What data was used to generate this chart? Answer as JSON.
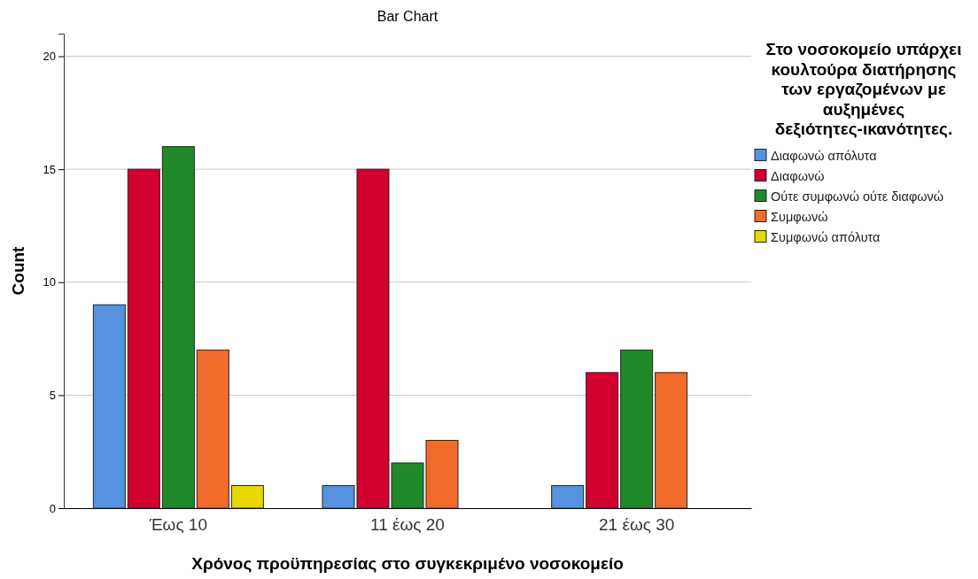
{
  "chart_data": {
    "type": "bar",
    "title": "Bar Chart",
    "xlabel": "Χρόνος προϋπηρεσίας στο συγκεκριμένο νοσοκομείο",
    "ylabel": "Count",
    "legend_title": "Στο νοσοκομείο υπάρχει κουλτούρα διατήρησης των εργαζομένων με αυξημένες δεξιότητες-ικανότητες.",
    "categories": [
      "Έως 10",
      "11 έως 20",
      "21 έως 30"
    ],
    "series": [
      {
        "name": "Διαφωνώ απόλυτα",
        "color": "#5592e0",
        "values": [
          9,
          1,
          1
        ]
      },
      {
        "name": "Διαφωνώ",
        "color": "#d2002f",
        "values": [
          15,
          15,
          6
        ]
      },
      {
        "name": "Ούτε συμφωνώ ούτε διαφωνώ",
        "color": "#208a2b",
        "values": [
          16,
          2,
          7
        ]
      },
      {
        "name": "Συμφωνώ",
        "color": "#f26b2a",
        "values": [
          7,
          3,
          6
        ]
      },
      {
        "name": "Συμφωνώ απόλυτα",
        "color": "#e6d800",
        "values": [
          1,
          null,
          null
        ]
      }
    ],
    "ylim": [
      0,
      21
    ],
    "yticks": [
      0,
      5,
      10,
      15,
      20
    ],
    "grid": "y",
    "legend": "right"
  }
}
